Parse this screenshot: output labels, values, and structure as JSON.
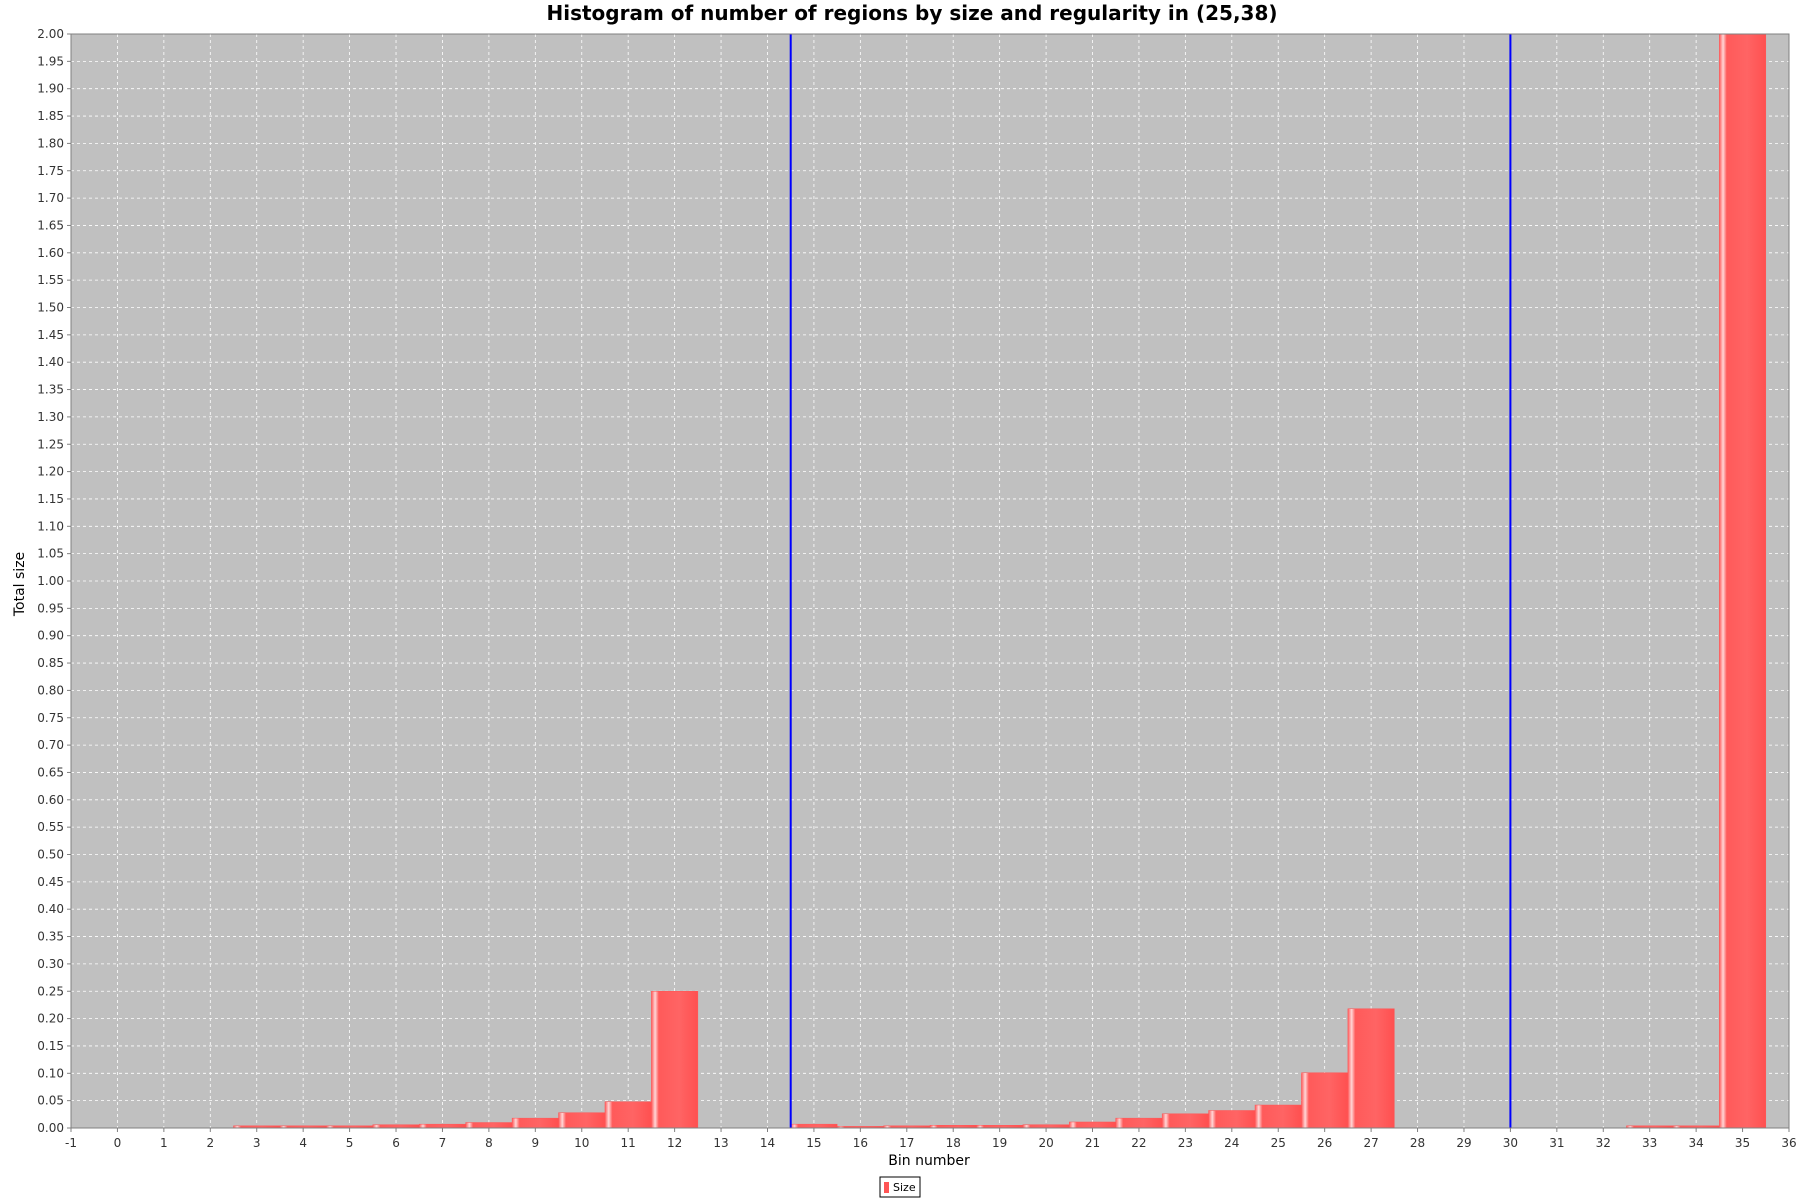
{
  "chart_data": {
    "type": "bar",
    "title": "Histogram of number of regions by size and regularity in (25,38)",
    "xlabel": "Bin number",
    "ylabel": "Total size",
    "xlim": [
      -1,
      36
    ],
    "ylim": [
      0,
      2.0
    ],
    "y_tick_step": 0.05,
    "grid": true,
    "legend_position": "bottom-center",
    "series": [
      {
        "name": "Size",
        "color": "#ff5555",
        "bars": [
          {
            "x": 3,
            "value": 0.004
          },
          {
            "x": 4,
            "value": 0.004
          },
          {
            "x": 5,
            "value": 0.004
          },
          {
            "x": 6,
            "value": 0.006
          },
          {
            "x": 7,
            "value": 0.007
          },
          {
            "x": 8,
            "value": 0.01
          },
          {
            "x": 9,
            "value": 0.018
          },
          {
            "x": 10,
            "value": 0.028
          },
          {
            "x": 11,
            "value": 0.048
          },
          {
            "x": 12,
            "value": 0.25
          },
          {
            "x": 15,
            "value": 0.007
          },
          {
            "x": 16,
            "value": 0.003
          },
          {
            "x": 17,
            "value": 0.004
          },
          {
            "x": 18,
            "value": 0.005
          },
          {
            "x": 19,
            "value": 0.005
          },
          {
            "x": 20,
            "value": 0.006
          },
          {
            "x": 21,
            "value": 0.011
          },
          {
            "x": 22,
            "value": 0.018
          },
          {
            "x": 23,
            "value": 0.026
          },
          {
            "x": 24,
            "value": 0.032
          },
          {
            "x": 25,
            "value": 0.042
          },
          {
            "x": 26,
            "value": 0.101
          },
          {
            "x": 27,
            "value": 0.218
          },
          {
            "x": 33,
            "value": 0.004
          },
          {
            "x": 34,
            "value": 0.004
          },
          {
            "x": 35,
            "value": 2.0
          }
        ]
      }
    ],
    "markers": [
      {
        "x": 14.5,
        "color": "#0000ff"
      },
      {
        "x": 30,
        "color": "#0000ff"
      }
    ],
    "colors": {
      "plot_background": "#c0c0c0",
      "grid": "#ffffff",
      "bar": "#ff5555",
      "bar_highlight": "#ffd0d0",
      "marker": "#0000ff"
    }
  }
}
